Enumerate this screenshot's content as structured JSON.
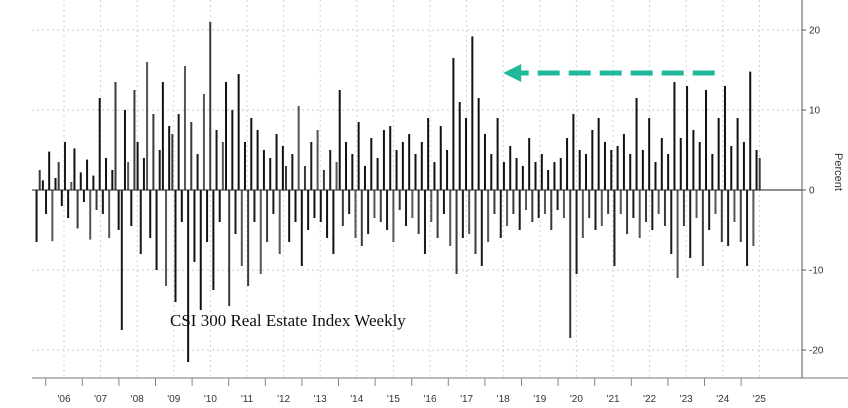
{
  "chart_data": {
    "type": "bar",
    "title": "CSI 300 Real Estate Index Weekly",
    "ylabel": "Percent",
    "xlabel": "",
    "x_start": "2005-04",
    "x_end": "2025-02",
    "ylim": [
      -22,
      24
    ],
    "y_ticks": [
      20,
      10,
      0,
      -10,
      -20
    ],
    "x_tick_labels": [
      "'06",
      "'07",
      "'08",
      "'09",
      "'10",
      "'11",
      "'12",
      "'13",
      "'14",
      "'15",
      "'16",
      "'17",
      "'18",
      "'19",
      "'20",
      "'21",
      "'22",
      "'23",
      "'24",
      "'25"
    ],
    "grid": true,
    "bar_color": "#111111",
    "annotation": {
      "type": "arrow",
      "style": "dashed",
      "color": "#1fb89a",
      "from": "2023-11",
      "to": "2018-01",
      "y": 14.8
    },
    "values": [
      -6.5,
      2.5,
      1.2,
      -3.0,
      4.8,
      -6.4,
      1.5,
      3.5,
      -2.0,
      6.0,
      -3.5,
      1.0,
      5.2,
      -4.8,
      2.2,
      -1.5,
      3.8,
      -6.2,
      1.8,
      -2.5,
      11.5,
      -3.0,
      4.0,
      -6.0,
      2.5,
      13.5,
      -5.0,
      -17.5,
      10.0,
      3.5,
      -4.5,
      12.5,
      6.0,
      -8.0,
      4.0,
      16.0,
      -6.0,
      9.5,
      -10.0,
      5.0,
      13.5,
      -12.0,
      8.0,
      7.0,
      -14.0,
      9.5,
      -4.0,
      15.5,
      -21.5,
      8.5,
      -9.0,
      4.5,
      -15.0,
      12.0,
      -6.5,
      21.0,
      -12.5,
      7.5,
      -4.0,
      6.0,
      13.5,
      -14.5,
      10.0,
      -5.5,
      14.5,
      -9.5,
      6.0,
      -12.0,
      9.0,
      -4.0,
      7.5,
      -10.5,
      5.0,
      -6.5,
      4.0,
      -3.0,
      7.0,
      -8.0,
      5.5,
      3.0,
      -6.5,
      4.5,
      -4.0,
      10.5,
      -9.5,
      3.0,
      -5.0,
      6.0,
      -3.5,
      7.5,
      -4.0,
      2.5,
      -6.0,
      5.0,
      -8.0,
      3.5,
      12.5,
      -4.5,
      6.0,
      -3.0,
      4.5,
      -6.0,
      8.5,
      -7.0,
      3.0,
      -5.5,
      6.5,
      -3.5,
      4.0,
      -4.0,
      7.5,
      -5.0,
      8.0,
      -6.5,
      5.0,
      -2.5,
      6.0,
      -4.5,
      7.0,
      -3.5,
      4.5,
      -5.5,
      6.0,
      -8.0,
      9.0,
      -4.0,
      3.5,
      -6.0,
      8.0,
      -3.0,
      5.0,
      -7.0,
      16.5,
      -10.5,
      11.0,
      -6.0,
      9.0,
      -5.5,
      19.2,
      -8.0,
      11.5,
      -9.5,
      7.0,
      -6.5,
      4.5,
      -3.0,
      9.0,
      -6.0,
      3.5,
      -4.5,
      5.5,
      -3.0,
      4.0,
      -5.0,
      3.0,
      -2.5,
      6.5,
      -4.0,
      3.5,
      -3.5,
      4.5,
      -3.0,
      2.5,
      -5.0,
      3.5,
      -2.5,
      4.0,
      -3.5,
      6.5,
      -18.5,
      9.5,
      -10.5,
      5.0,
      -6.0,
      4.5,
      -3.5,
      7.5,
      -5.0,
      9.0,
      -4.5,
      6.0,
      -3.0,
      5.0,
      -9.5,
      5.5,
      -3.0,
      7.0,
      -5.5,
      4.5,
      -3.5,
      11.5,
      -6.0,
      5.0,
      -4.0,
      9.0,
      -5.0,
      3.5,
      -3.0,
      6.5,
      -4.5,
      4.5,
      -8.0,
      13.5,
      -11.0,
      6.5,
      -4.5,
      13.0,
      -8.5,
      7.5,
      -3.5,
      6.0,
      -9.5,
      12.5,
      -5.0,
      4.5,
      -3.0,
      9.0,
      -6.5,
      13.0,
      -7.0,
      5.5,
      -4.0,
      9.0,
      -6.5,
      6.0,
      -9.5,
      14.8,
      -7.0,
      5.0,
      4.0
    ]
  }
}
